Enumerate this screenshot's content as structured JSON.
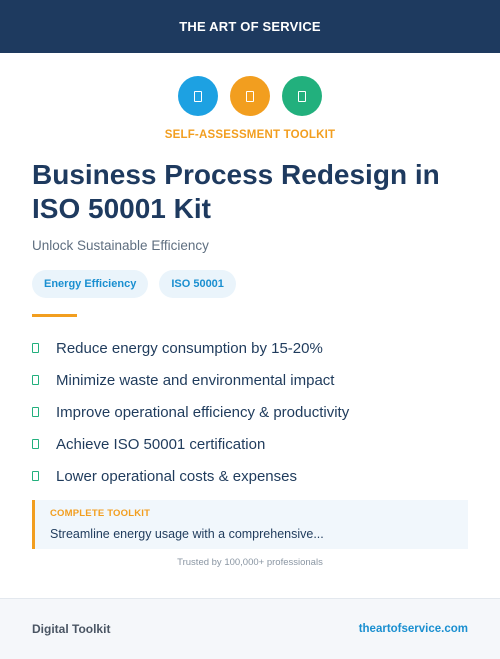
{
  "header": {
    "brand": "THE ART OF SERVICE"
  },
  "icons": [
    {
      "name": "blue-circle-icon",
      "color": "#1da1e2"
    },
    {
      "name": "orange-circle-icon",
      "color": "#f29e1f"
    },
    {
      "name": "green-circle-icon",
      "color": "#22b07d"
    }
  ],
  "kicker": "SELF-ASSESSMENT TOOLKIT",
  "title": "Business Process Redesign in ISO 50001 Kit",
  "subtitle": "Unlock Sustainable Efficiency",
  "tags": [
    "Energy Efficiency",
    "ISO 50001"
  ],
  "benefits": [
    "Reduce energy consumption by 15-20%",
    "Minimize waste and environmental impact",
    "Improve operational efficiency & productivity",
    "Achieve ISO 50001 certification",
    "Lower operational costs & expenses"
  ],
  "callout": {
    "label": "COMPLETE TOOLKIT",
    "text": "Streamline energy usage with a comprehensive..."
  },
  "trusted": "Trusted by 100,000+ professionals",
  "footer": {
    "left": "Digital Toolkit",
    "right": "theartofservice.com"
  },
  "colors": {
    "navy": "#1e3a5f",
    "orange": "#f29e1f",
    "blue": "#1a8fd0",
    "green": "#22b07d"
  }
}
